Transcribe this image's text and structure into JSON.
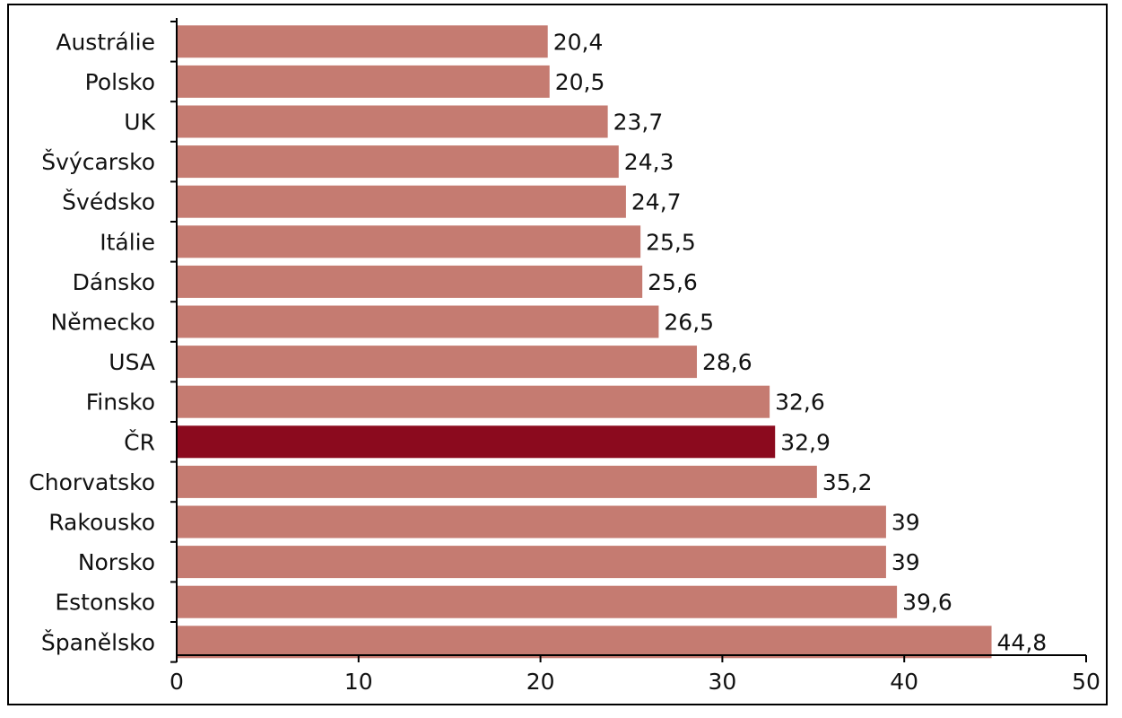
{
  "chart_data": {
    "type": "bar",
    "orientation": "horizontal",
    "categories": [
      "Austrálie",
      "Polsko",
      "UK",
      "Švýcarsko",
      "Švédsko",
      "Itálie",
      "Dánsko",
      "Německo",
      "USA",
      "Finsko",
      "ČR",
      "Chorvatsko",
      "Rakousko",
      "Norsko",
      "Estonsko",
      "Španělsko"
    ],
    "values": [
      20.4,
      20.5,
      23.7,
      24.3,
      24.7,
      25.5,
      25.6,
      26.5,
      28.6,
      32.6,
      32.9,
      35.2,
      39,
      39,
      39.6,
      44.8
    ],
    "value_labels": [
      "20,4",
      "20,5",
      "23,7",
      "24,3",
      "24,7",
      "25,5",
      "25,6",
      "26,5",
      "28,6",
      "32,6",
      "32,9",
      "35,2",
      "39",
      "39",
      "39,6",
      "44,8"
    ],
    "highlight_category": "ČR",
    "xlim": [
      0,
      50
    ],
    "x_ticks": [
      0,
      10,
      20,
      30,
      40,
      50
    ],
    "grid": false,
    "legend": "none",
    "colors": {
      "bar": "#c57b71",
      "highlight": "#8b0a1e",
      "axis": "#000000"
    }
  }
}
